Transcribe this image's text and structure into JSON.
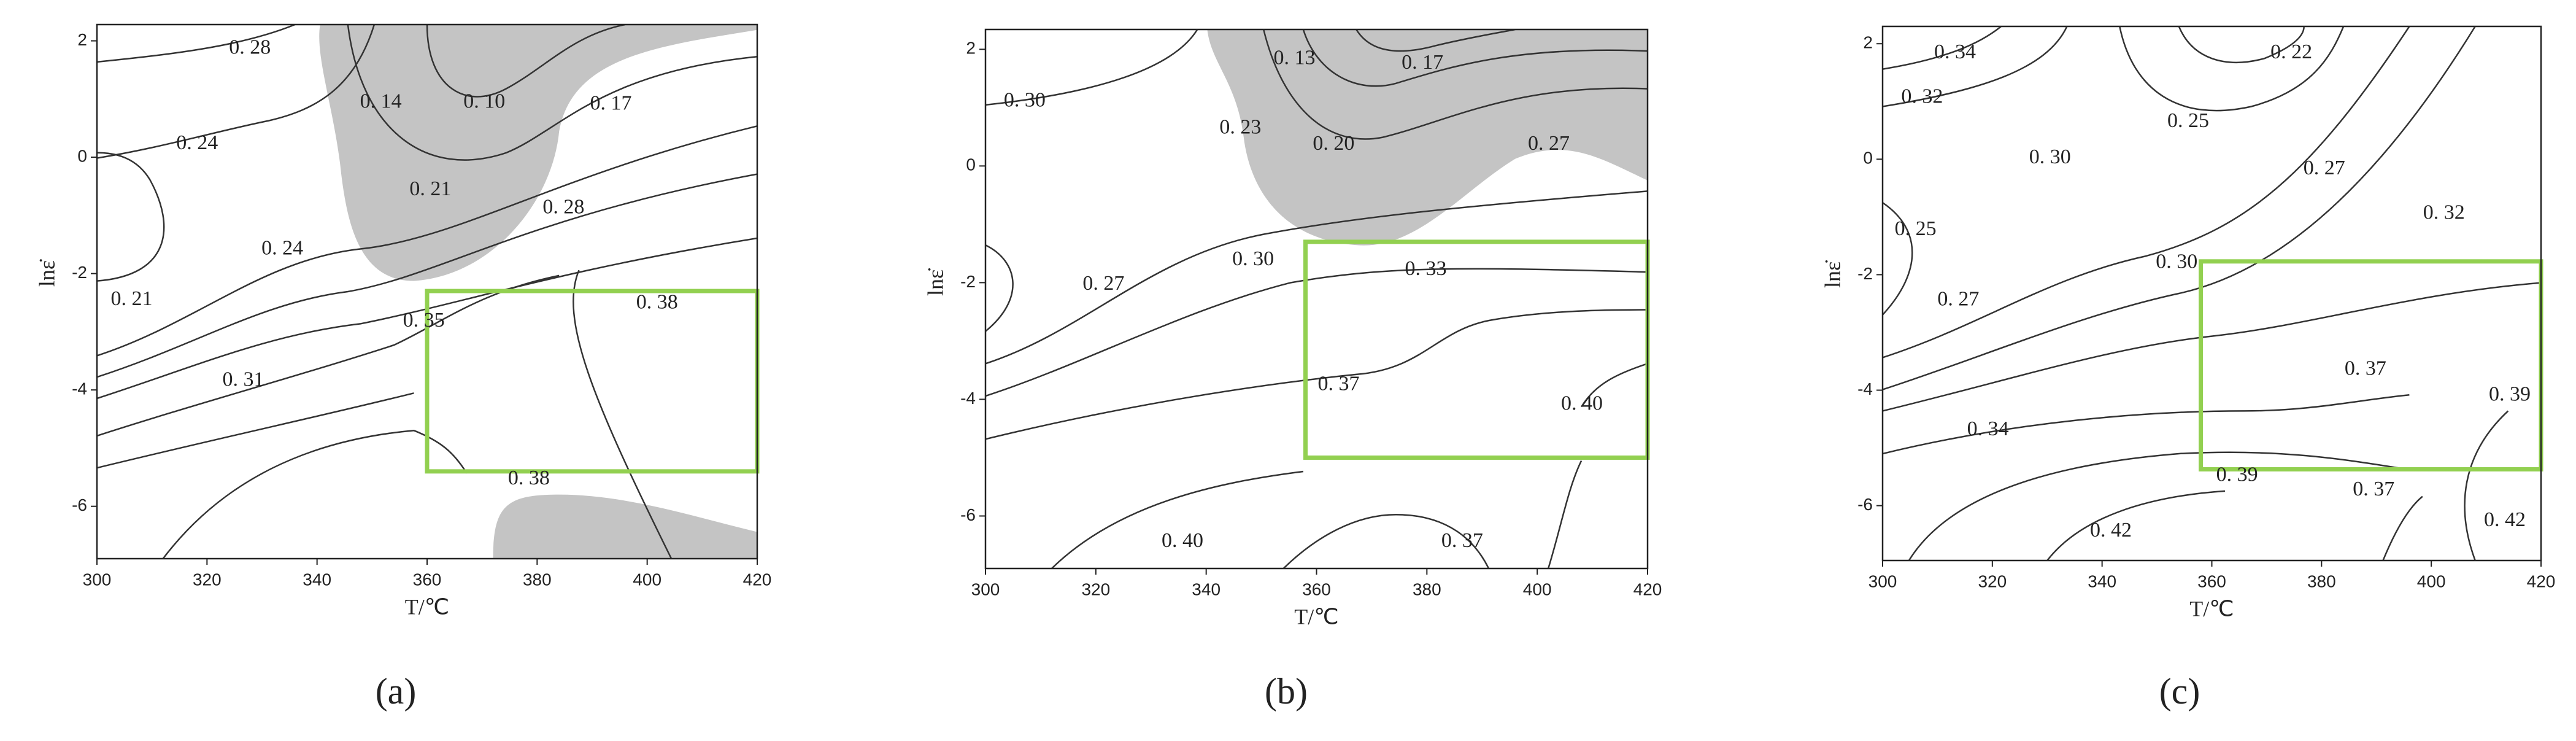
{
  "chart_data": [
    {
      "type": "contour",
      "caption": "(a)",
      "xlabel": "T/℃",
      "ylabel": "lnε̇",
      "xlim": [
        300,
        420
      ],
      "ylim": [
        -6.9,
        2.28
      ],
      "xticks": [
        300,
        320,
        340,
        360,
        380,
        400,
        420
      ],
      "yticks": [
        -6,
        -4,
        -2,
        0,
        2
      ],
      "highlight": {
        "xlim": [
          360,
          420
        ],
        "ylim": [
          -5.4,
          -2.3
        ],
        "color": "#92d050"
      },
      "contour_labels": [
        {
          "text": "0. 28",
          "x": 327.8,
          "y": 1.86
        },
        {
          "text": "0. 24",
          "x": 318.2,
          "y": 0.22
        },
        {
          "text": "0. 14",
          "x": 351.6,
          "y": 0.93
        },
        {
          "text": "0. 10",
          "x": 370.4,
          "y": 0.93
        },
        {
          "text": "0. 17",
          "x": 393.4,
          "y": 0.9
        },
        {
          "text": "0. 21",
          "x": 360.6,
          "y": -0.57
        },
        {
          "text": "0. 28",
          "x": 384.8,
          "y": -0.88
        },
        {
          "text": "0. 24",
          "x": 333.7,
          "y": -1.59
        },
        {
          "text": "0. 21",
          "x": 306.3,
          "y": -2.46
        },
        {
          "text": "0. 35",
          "x": 359.4,
          "y": -2.83
        },
        {
          "text": "0. 38",
          "x": 401.8,
          "y": -2.52
        },
        {
          "text": "0. 31",
          "x": 326.6,
          "y": -3.85
        },
        {
          "text": "0. 38",
          "x": 378.5,
          "y": -5.54
        }
      ]
    },
    {
      "type": "contour",
      "caption": "(b)",
      "xlabel": "T/℃",
      "ylabel": "lnε̇",
      "xlim": [
        300,
        420
      ],
      "ylim": [
        -6.9,
        2.34
      ],
      "xticks": [
        300,
        320,
        340,
        360,
        380,
        400,
        420
      ],
      "yticks": [
        -6,
        -4,
        -2,
        0,
        2
      ],
      "highlight": {
        "xlim": [
          358,
          420
        ],
        "ylim": [
          -5.0,
          -1.3
        ],
        "color": "#92d050"
      },
      "contour_labels": [
        {
          "text": "0. 30",
          "x": 307.1,
          "y": 1.1
        },
        {
          "text": "0. 13",
          "x": 356,
          "y": 1.83
        },
        {
          "text": "0. 17",
          "x": 379.2,
          "y": 1.75
        },
        {
          "text": "0. 23",
          "x": 346.2,
          "y": 0.64
        },
        {
          "text": "0. 20",
          "x": 363.1,
          "y": 0.36
        },
        {
          "text": "0. 27",
          "x": 402.1,
          "y": 0.36
        },
        {
          "text": "0. 30",
          "x": 348.5,
          "y": -1.62
        },
        {
          "text": "0. 33",
          "x": 379.8,
          "y": -1.79
        },
        {
          "text": "0. 27",
          "x": 321.4,
          "y": -2.04
        },
        {
          "text": "0. 37",
          "x": 364,
          "y": -3.76
        },
        {
          "text": "0. 40",
          "x": 408.1,
          "y": -4.1
        },
        {
          "text": "0. 40",
          "x": 335.7,
          "y": -6.45
        },
        {
          "text": "0. 37",
          "x": 386.4,
          "y": -6.45
        }
      ]
    },
    {
      "type": "contour",
      "caption": "(c)",
      "xlabel": "T/℃",
      "ylabel": "lnε̇",
      "xlim": [
        300,
        420
      ],
      "ylim": [
        -6.95,
        2.3
      ],
      "xticks": [
        300,
        320,
        340,
        360,
        380,
        400,
        420
      ],
      "yticks": [
        -6,
        -4,
        -2,
        0,
        2
      ],
      "highlight": {
        "xlim": [
          358,
          420
        ],
        "ylim": [
          -5.37,
          -1.77
        ],
        "color": "#92d050"
      },
      "contour_labels": [
        {
          "text": "0. 34",
          "x": 313.2,
          "y": 1.83
        },
        {
          "text": "0. 22",
          "x": 374.5,
          "y": 1.83
        },
        {
          "text": "0. 32",
          "x": 307.2,
          "y": 1.06
        },
        {
          "text": "0. 25",
          "x": 355.7,
          "y": 0.64
        },
        {
          "text": "0. 30",
          "x": 330.5,
          "y": 0.01
        },
        {
          "text": "0. 27",
          "x": 380.5,
          "y": -0.18
        },
        {
          "text": "0. 32",
          "x": 402.3,
          "y": -0.95
        },
        {
          "text": "0. 25",
          "x": 306,
          "y": -1.23
        },
        {
          "text": "0. 30",
          "x": 353.6,
          "y": -1.8
        },
        {
          "text": "0. 27",
          "x": 313.8,
          "y": -2.45
        },
        {
          "text": "0. 37",
          "x": 388,
          "y": -3.65
        },
        {
          "text": "0. 39",
          "x": 414.3,
          "y": -4.1
        },
        {
          "text": "0. 34",
          "x": 319.2,
          "y": -4.7
        },
        {
          "text": "0. 39",
          "x": 364.6,
          "y": -5.49
        },
        {
          "text": "0. 37",
          "x": 389.5,
          "y": -5.74
        },
        {
          "text": "0. 42",
          "x": 341.6,
          "y": -6.45
        },
        {
          "text": "0. 42",
          "x": 413.4,
          "y": -6.27
        }
      ]
    }
  ]
}
